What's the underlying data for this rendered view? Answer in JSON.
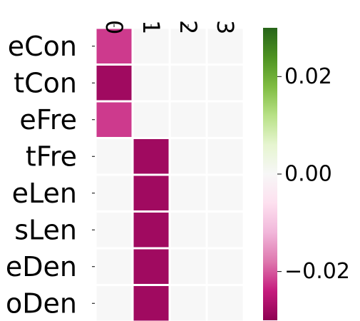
{
  "chart_data": {
    "type": "heatmap",
    "title": "",
    "xlabel": "",
    "ylabel": "",
    "x_categories": [
      "0",
      "1",
      "2",
      "3"
    ],
    "y_categories": [
      "eCon",
      "tCon",
      "eFre",
      "tFre",
      "eLen",
      "sLen",
      "eDen",
      "oDen"
    ],
    "values": [
      [
        -0.022,
        0,
        0,
        0
      ],
      [
        -0.028,
        0,
        0,
        0
      ],
      [
        -0.022,
        0,
        0,
        0
      ],
      [
        0,
        -0.028,
        0,
        0
      ],
      [
        0,
        -0.028,
        0,
        0
      ],
      [
        0,
        -0.028,
        0,
        0
      ],
      [
        0,
        -0.028,
        0,
        0
      ],
      [
        0,
        -0.028,
        0,
        0
      ]
    ],
    "colormap": "PiYG",
    "vmin": -0.03,
    "vmax": 0.03,
    "colorbar_ticks": [
      {
        "value": 0.02,
        "label": "0.02"
      },
      {
        "value": 0.0,
        "label": "0.00"
      },
      {
        "value": -0.02,
        "label": "−0.02"
      }
    ],
    "grid_line_color": "#ffffff"
  }
}
